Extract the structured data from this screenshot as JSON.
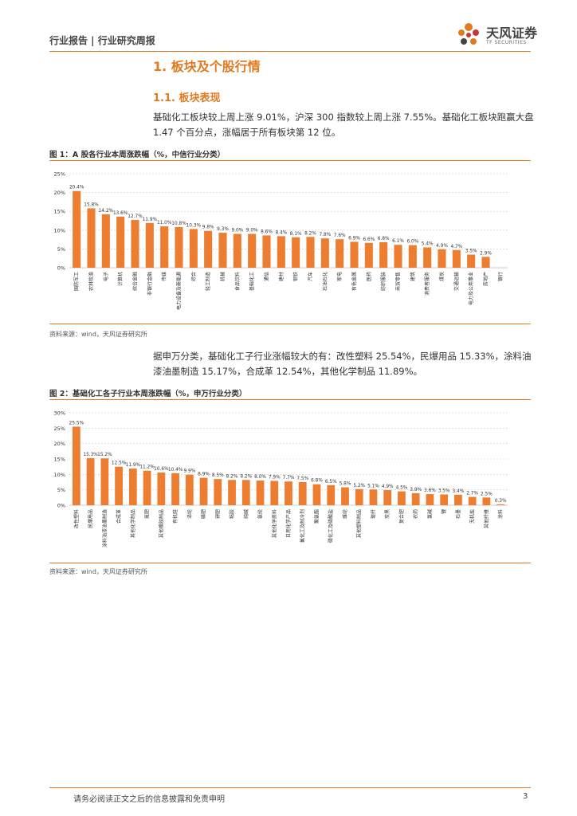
{
  "header": {
    "title": "行业报告 | 行业研究周报"
  },
  "logo": {
    "name_cn": "天风证券",
    "name_en": "TF SECURITIES"
  },
  "section": {
    "h1": "1. 板块及个股行情",
    "h2": "1.1. 板块表现"
  },
  "paragraphs": [
    "基础化工板块较上周上涨 9.01%，沪深 300 指数较上周上涨 7.55%。基础化工板块跑赢大盘 1.47 个百分点，涨幅居于所有板块第 12 位。",
    "据申万分类，基础化工子行业涨幅较大的有：改性塑料 25.54%，民爆用品 15.33%，涂料油漆油墨制造 15.17%，合成革 12.54%，其他化学制品 11.89%。"
  ],
  "figures": [
    {
      "title": "图 1：A 股各行业本周涨跌幅（%，中信行业分类）",
      "source": "资料来源：wind，天风证券研究所"
    },
    {
      "title": "图 2：基础化工各子行业本周涨跌幅（%，申万行业分类）",
      "source": "资料来源：wind，天风证券研究所"
    }
  ],
  "footer": {
    "disclaimer": "请务必阅读正文之后的信息披露和免责申明",
    "page": "3"
  },
  "colors": {
    "accent": "#e07b20",
    "bar": "#ed7d31"
  },
  "chart_data": [
    {
      "type": "bar",
      "title": "",
      "xlabel": "",
      "ylabel": "",
      "ylim": [
        0,
        25
      ],
      "yticks": [
        "0%",
        "5%",
        "10%",
        "15%",
        "20%",
        "25%"
      ],
      "grid": true,
      "categories": [
        "国防军工",
        "农林牧渔",
        "电子",
        "计算机",
        "综合金融",
        "非银行金融",
        "传媒",
        "电力设备及新能源",
        "综合",
        "轻工制造",
        "机械",
        "食品饮料",
        "基础化工",
        "通信",
        "建材",
        "钢铁",
        "汽车",
        "石油石化",
        "家电",
        "有色金属",
        "医药",
        "纺织服装",
        "商贸零售",
        "建筑",
        "消费者服务",
        "煤炭",
        "交通运输",
        "电力及公用事业",
        "房地产",
        "银行"
      ],
      "values": [
        20.4,
        15.8,
        14.2,
        13.6,
        12.7,
        11.9,
        11.0,
        10.8,
        10.3,
        9.8,
        9.3,
        9.0,
        9.0,
        8.6,
        8.4,
        8.1,
        8.2,
        7.8,
        7.6,
        6.9,
        6.6,
        6.8,
        6.1,
        6.0,
        5.4,
        4.9,
        4.7,
        3.5,
        2.9,
        null
      ],
      "labels": [
        "20.4%",
        "15.8%",
        "14.2%",
        "13.6%",
        "12.7%",
        "11.9%",
        "11.0%",
        "10.8%",
        "10.3%",
        "9.8%",
        "9.3%",
        "9.0%",
        "9.0%",
        "8.6%",
        "8.4%",
        "8.1%",
        "8.2%",
        "7.8%",
        "7.6%",
        "6.9%",
        "6.6%",
        "6.8%",
        "6.1%",
        "6.0%",
        "5.4%",
        "4.9%",
        "4.7%",
        "3.5%",
        "2.9%",
        ""
      ]
    },
    {
      "type": "bar",
      "title": "",
      "xlabel": "",
      "ylabel": "",
      "ylim": [
        0,
        30
      ],
      "yticks": [
        "0%",
        "5%",
        "10%",
        "15%",
        "20%",
        "25%",
        "30%"
      ],
      "grid": true,
      "categories": [
        "改性塑料",
        "民爆用品",
        "涂料油漆油墨制造",
        "合成革",
        "其他化学制品",
        "氮肥",
        "其他橡胶制品",
        "有机硅",
        "涤纶",
        "磷肥",
        "钾肥",
        "粘胶",
        "纯碱",
        "氨纶",
        "其他化学原料",
        "日用化学产品",
        "氟化工及制冷剂",
        "聚氨酯",
        "磷化工及磷酸盐",
        "维纶",
        "其他塑料制品",
        "玻纤",
        "炭黑",
        "复合肥",
        "农药",
        "氯碱",
        "锂",
        "石墨",
        "无机盐",
        "其他纤维",
        "涂料"
      ],
      "values": [
        25.5,
        15.3,
        15.2,
        12.5,
        11.9,
        11.2,
        10.6,
        10.4,
        9.9,
        8.9,
        8.5,
        8.2,
        8.2,
        8.0,
        7.9,
        7.7,
        7.5,
        6.8,
        6.5,
        5.8,
        5.2,
        5.1,
        4.9,
        4.5,
        3.9,
        3.6,
        3.5,
        3.4,
        2.7,
        2.5,
        0.3
      ],
      "labels": [
        "25.5%",
        "15.3%",
        "15.2%",
        "12.5%",
        "11.9%",
        "11.2%",
        "10.6%",
        "10.4%",
        "9.9%",
        "8.9%",
        "8.5%",
        "8.2%",
        "8.2%",
        "8.0%",
        "7.9%",
        "7.7%",
        "7.5%",
        "6.8%",
        "6.5%",
        "5.8%",
        "5.2%",
        "5.1%",
        "4.9%",
        "4.5%",
        "3.9%",
        "3.6%",
        "3.5%",
        "3.4%",
        "2.7%",
        "2.5%",
        "0.3%"
      ]
    }
  ]
}
